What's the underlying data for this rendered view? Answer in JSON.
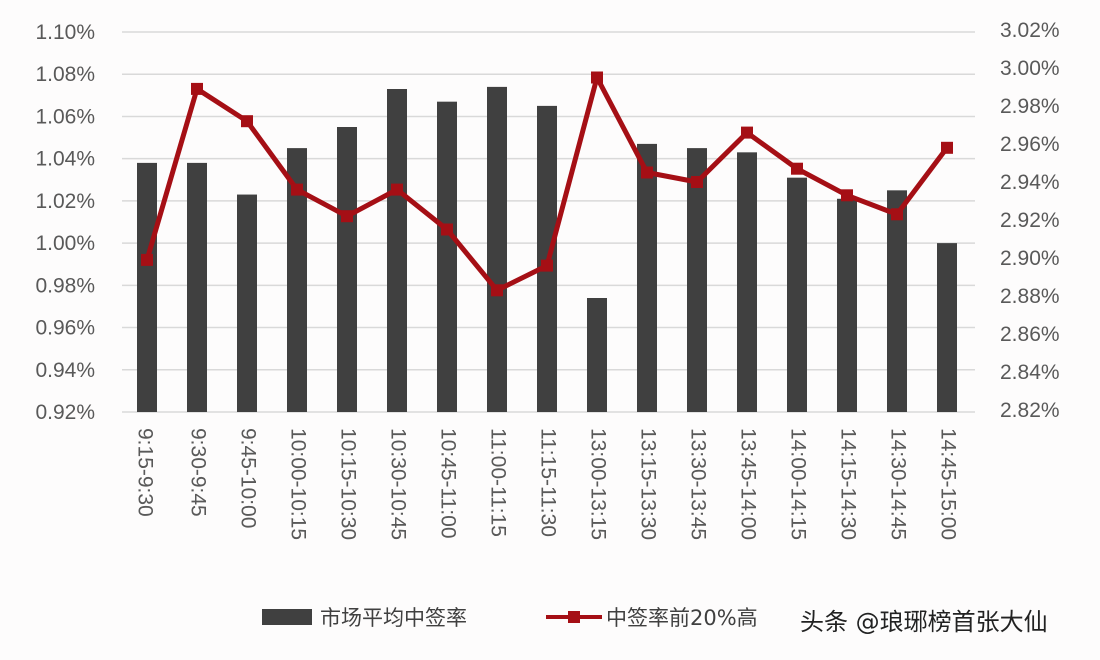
{
  "chart_data": {
    "type": "bar+line",
    "categories": [
      "9:15-9:30",
      "9:30-9:45",
      "9:45-10:00",
      "10:00-10:15",
      "10:15-10:30",
      "10:30-10:45",
      "10:45-11:00",
      "11:00-11:15",
      "11:15-11:30",
      "13:00-13:15",
      "13:15-13:30",
      "13:30-13:45",
      "13:45-14:00",
      "14:00-14:15",
      "14:15-14:30",
      "14:30-14:45",
      "14:45-15:00"
    ],
    "series": [
      {
        "name": "市场平均中签率",
        "type": "bar",
        "axis": "left",
        "color": "#404040",
        "values": [
          1.038,
          1.038,
          1.023,
          1.045,
          1.055,
          1.073,
          1.067,
          1.074,
          1.065,
          0.974,
          1.047,
          1.045,
          1.043,
          1.031,
          1.021,
          1.025,
          1.0
        ]
      },
      {
        "name": "中签率前20%高",
        "type": "line",
        "axis": "right",
        "color": "#a50f15",
        "values": [
          2.899,
          2.989,
          2.972,
          2.936,
          2.922,
          2.936,
          2.915,
          2.883,
          2.896,
          2.995,
          2.945,
          2.94,
          2.966,
          2.947,
          2.933,
          2.923,
          2.958
        ]
      }
    ],
    "y_left": {
      "range": [
        0.92,
        1.1
      ],
      "ticks": [
        "0.92%",
        "0.94%",
        "0.96%",
        "0.98%",
        "1.00%",
        "1.02%",
        "1.04%",
        "1.06%",
        "1.08%",
        "1.10%"
      ]
    },
    "y_right": {
      "range": [
        2.82,
        3.02
      ],
      "ticks": [
        "2.82%",
        "2.84%",
        "2.86%",
        "2.88%",
        "2.90%",
        "2.92%",
        "2.94%",
        "2.96%",
        "2.98%",
        "3.00%",
        "3.02%"
      ]
    },
    "grid": true,
    "legend_position": "bottom"
  },
  "watermark": "头条 @琅琊榜首张大仙"
}
